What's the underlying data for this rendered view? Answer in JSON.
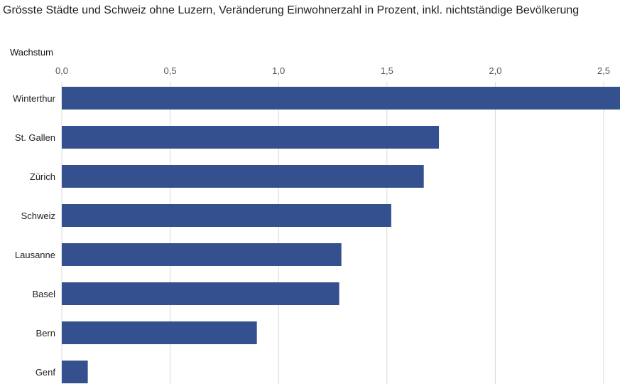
{
  "chart_data": {
    "type": "bar",
    "orientation": "horizontal",
    "title": "Grösste Städte und Schweiz ohne Luzern, Veränderung Einwohnerzahl in Prozent, inkl. nichtständige Bevölkerung",
    "ylabel": "Wachstum",
    "xlim": [
      0,
      2.6
    ],
    "ticks": [
      0,
      0.5,
      1.0,
      1.5,
      2.0,
      2.5
    ],
    "tick_labels": [
      "0,0",
      "0,5",
      "1,0",
      "1,5",
      "2,0",
      "2,5"
    ],
    "categories": [
      "Winterthur",
      "St. Gallen",
      "Zürich",
      "Schweiz",
      "Lausanne",
      "Basel",
      "Bern",
      "Genf"
    ],
    "values": [
      2.61,
      1.74,
      1.67,
      1.52,
      1.29,
      1.28,
      0.9,
      0.12
    ],
    "bar_color": "#34508f",
    "grid": true,
    "grid_color": "#d9d9d9"
  }
}
